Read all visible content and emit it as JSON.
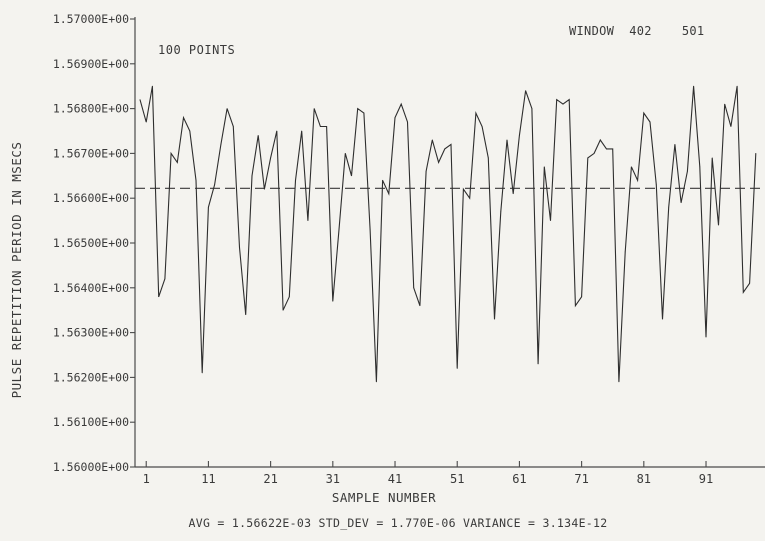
{
  "chart_data": {
    "type": "line",
    "title": "",
    "xlabel": "SAMPLE NUMBER",
    "ylabel": "PULSE REPETITION PERIOD IN MSECS",
    "xlim": [
      0,
      100
    ],
    "ylim": [
      1.56,
      1.57
    ],
    "ytick_labels": [
      "1.56000E+00",
      "1.56100E+00",
      "1.56200E+00",
      "1.56300E+00",
      "1.56400E+00",
      "1.56500E+00",
      "1.56600E+00",
      "1.56700E+00",
      "1.56800E+00",
      "1.56900E+00",
      "1.57000E+00"
    ],
    "ytick_values": [
      1.56,
      1.561,
      1.562,
      1.563,
      1.564,
      1.565,
      1.566,
      1.567,
      1.568,
      1.569,
      1.57
    ],
    "xtick_labels": [
      "1",
      "11",
      "21",
      "31",
      "41",
      "51",
      "61",
      "71",
      "81",
      "91"
    ],
    "xtick_values": [
      1,
      11,
      21,
      31,
      41,
      51,
      61,
      71,
      81,
      91
    ],
    "grid": false,
    "average_line": 1.56622,
    "series": [
      {
        "x": [
          0,
          1,
          2,
          3,
          4,
          5,
          6,
          7,
          8,
          9,
          10,
          11,
          12,
          13,
          14,
          15,
          16,
          17,
          18,
          19,
          20,
          21,
          22,
          23,
          24,
          25,
          26,
          27,
          28,
          29,
          30,
          31,
          32,
          33,
          34,
          35,
          36,
          37,
          38,
          39,
          40,
          41,
          42,
          43,
          44,
          45,
          46,
          47,
          48,
          49,
          50,
          51,
          52,
          53,
          54,
          55,
          56,
          57,
          58,
          59,
          60,
          61,
          62,
          63,
          64,
          65,
          66,
          67,
          68,
          69,
          70,
          71,
          72,
          73,
          74,
          75,
          76,
          77,
          78,
          79,
          80,
          81,
          82,
          83,
          84,
          85,
          86,
          87,
          88,
          89,
          90,
          91,
          92,
          93,
          94,
          95,
          96,
          97,
          98,
          99
        ],
        "values": [
          1.5682,
          1.5677,
          1.5685,
          1.5638,
          1.5642,
          1.567,
          1.5668,
          1.5678,
          1.5675,
          1.5664,
          1.5621,
          1.5658,
          1.5663,
          1.5672,
          1.568,
          1.5676,
          1.5649,
          1.5634,
          1.5665,
          1.5674,
          1.5662,
          1.5669,
          1.5675,
          1.5635,
          1.5638,
          1.5664,
          1.5675,
          1.5655,
          1.568,
          1.5676,
          1.5676,
          1.5637,
          1.5653,
          1.567,
          1.5665,
          1.568,
          1.5679,
          1.5653,
          1.5619,
          1.5664,
          1.5661,
          1.5678,
          1.5681,
          1.5677,
          1.564,
          1.5636,
          1.5666,
          1.5673,
          1.5668,
          1.5671,
          1.5672,
          1.5622,
          1.5662,
          1.566,
          1.5679,
          1.5676,
          1.5669,
          1.5633,
          1.5657,
          1.5673,
          1.5661,
          1.5674,
          1.5684,
          1.568,
          1.5623,
          1.5667,
          1.5655,
          1.5682,
          1.5681,
          1.5682,
          1.5636,
          1.5638,
          1.5669,
          1.567,
          1.5673,
          1.5671,
          1.5671,
          1.5619,
          1.5648,
          1.5667,
          1.5664,
          1.5679,
          1.5677,
          1.5663,
          1.5633,
          1.5658,
          1.5672,
          1.5659,
          1.5666,
          1.5685,
          1.5667,
          1.5629,
          1.5669,
          1.5654,
          1.5681,
          1.5676,
          1.5685,
          1.5639,
          1.5641,
          1.567
        ]
      }
    ]
  },
  "annotations": {
    "points_label": "100 POINTS",
    "window_label": "WINDOW  402    501",
    "stats_line": "AVG = 1.56622E-03 STD_DEV = 1.770E-06 VARIANCE = 3.134E-12"
  }
}
